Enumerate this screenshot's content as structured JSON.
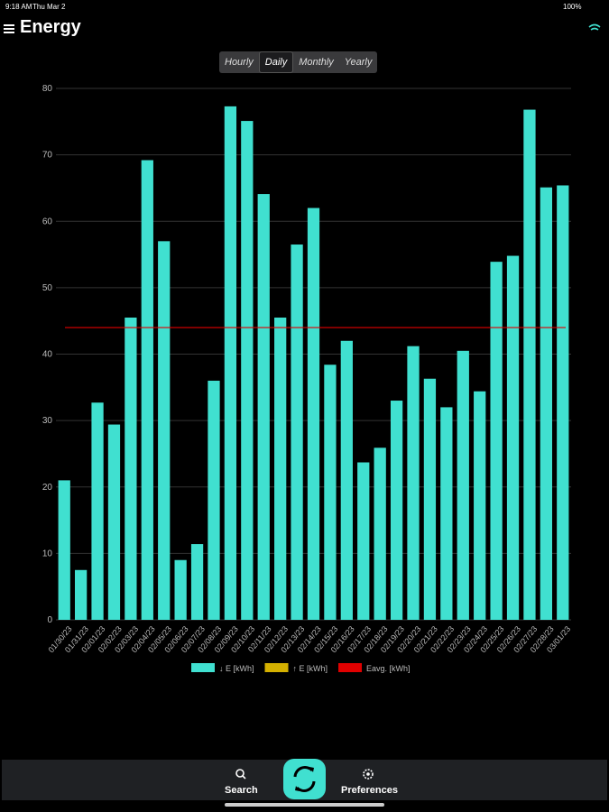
{
  "status_bar": {
    "time": "9:18 AM",
    "date": "Thu Mar 2",
    "battery": "100%"
  },
  "header": {
    "title": "Energy"
  },
  "tabs": [
    "Hourly",
    "Daily",
    "Monthly",
    "Yearly"
  ],
  "selected_tab": "Daily",
  "bottom_bar": {
    "search": "Search",
    "preferences": "Preferences"
  },
  "chart_data": {
    "type": "bar",
    "categories": [
      "01/30/23",
      "01/31/23",
      "02/01/23",
      "02/02/23",
      "02/03/23",
      "02/04/23",
      "02/05/23",
      "02/06/23",
      "02/07/23",
      "02/08/23",
      "02/09/23",
      "02/10/23",
      "02/11/23",
      "02/12/23",
      "02/13/23",
      "02/14/23",
      "02/15/23",
      "02/16/23",
      "02/17/23",
      "02/18/23",
      "02/19/23",
      "02/20/23",
      "02/21/23",
      "02/22/23",
      "02/23/23",
      "02/24/23",
      "02/25/23",
      "02/26/23",
      "02/27/23",
      "02/28/23",
      "03/01/23"
    ],
    "series": [
      {
        "name": "↓ E [kWh]",
        "color": "#40e0d0",
        "values": [
          21,
          7.5,
          32.7,
          29.4,
          45.5,
          69.2,
          57,
          9,
          11.4,
          36,
          77.3,
          75.1,
          64.1,
          45.5,
          56.5,
          62,
          38.4,
          42,
          23.7,
          25.9,
          33,
          41.2,
          36.3,
          32,
          40.5,
          34.4,
          53.9,
          54.8,
          76.8,
          65.1,
          65.4
        ]
      },
      {
        "name": "↑ E [kWh]",
        "color": "#d4b000"
      },
      {
        "name": "Eavg. [kWh]",
        "color": "#e00000",
        "value": 44
      }
    ],
    "ylim": [
      0,
      80
    ],
    "yticks": [
      0,
      10,
      20,
      30,
      40,
      50,
      60,
      70,
      80
    ],
    "grid": true
  }
}
